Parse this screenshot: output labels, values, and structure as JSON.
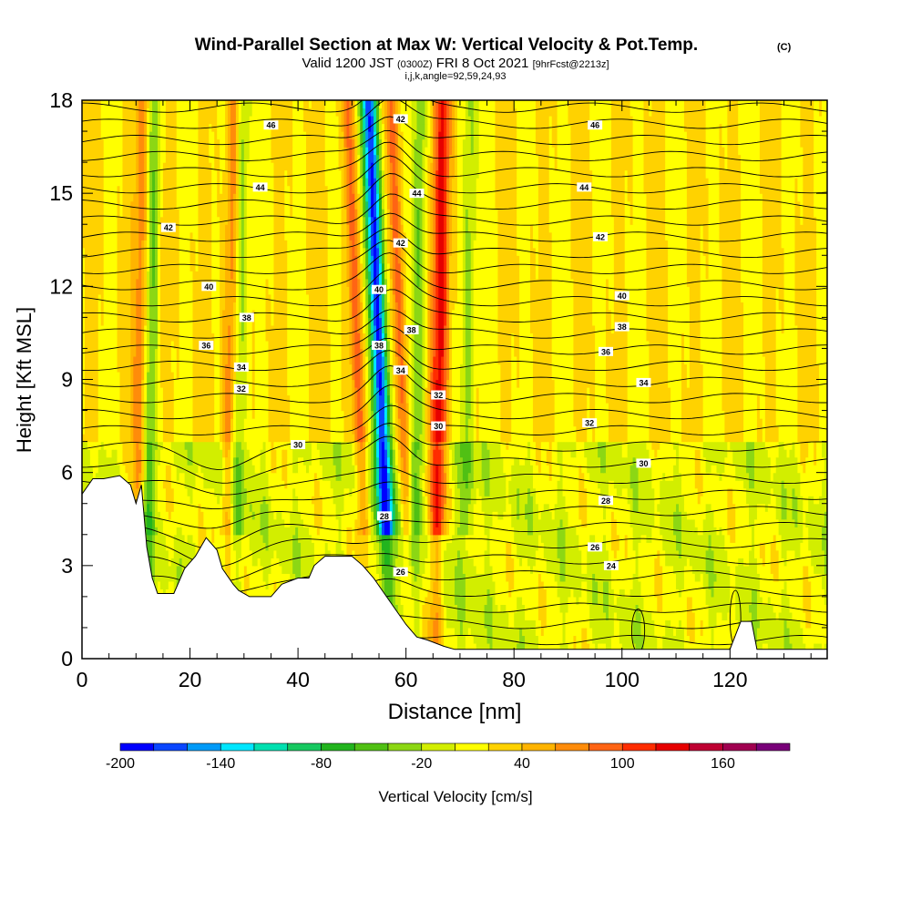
{
  "header": {
    "title": "Wind-Parallel Section at Max W: Vertical Velocity & Pot.Temp.",
    "copyright": "(C)",
    "valid_prefix": "Valid 1200 JST",
    "valid_utc": "(0300Z)",
    "valid_date": "FRI 8 Oct 2021",
    "forecast": "[9hrFcst@2213z]",
    "params": "i,j,k,angle=92,59,24,93"
  },
  "chart_data": {
    "type": "heatmap",
    "xlabel": "Distance [nm]",
    "ylabel": "Height [Kft MSL]",
    "xlim": [
      0,
      138
    ],
    "ylim": [
      0,
      18
    ],
    "x_ticks": [
      0,
      20,
      40,
      60,
      80,
      100,
      120
    ],
    "y_ticks": [
      0,
      3,
      6,
      9,
      12,
      15,
      18
    ],
    "x_minor_step": 5,
    "y_minor_step": 1,
    "contour_field": "potential temperature",
    "contour_labels": [
      {
        "x": 35,
        "y": 17.2,
        "text": "46"
      },
      {
        "x": 95,
        "y": 17.2,
        "text": "46"
      },
      {
        "x": 59,
        "y": 17.4,
        "text": "42"
      },
      {
        "x": 33,
        "y": 15.2,
        "text": "44"
      },
      {
        "x": 62,
        "y": 15.0,
        "text": "44"
      },
      {
        "x": 93,
        "y": 15.2,
        "text": "44"
      },
      {
        "x": 16,
        "y": 13.9,
        "text": "42"
      },
      {
        "x": 59,
        "y": 13.4,
        "text": "42"
      },
      {
        "x": 96,
        "y": 13.6,
        "text": "42"
      },
      {
        "x": 23.5,
        "y": 12.0,
        "text": "40"
      },
      {
        "x": 55,
        "y": 11.9,
        "text": "40"
      },
      {
        "x": 100,
        "y": 11.7,
        "text": "40"
      },
      {
        "x": 30.5,
        "y": 11.0,
        "text": "38"
      },
      {
        "x": 55,
        "y": 10.1,
        "text": "38"
      },
      {
        "x": 61,
        "y": 10.6,
        "text": "38"
      },
      {
        "x": 100,
        "y": 10.7,
        "text": "38"
      },
      {
        "x": 23,
        "y": 10.1,
        "text": "36"
      },
      {
        "x": 97,
        "y": 9.9,
        "text": "36"
      },
      {
        "x": 29.5,
        "y": 9.4,
        "text": "34"
      },
      {
        "x": 59,
        "y": 9.3,
        "text": "34"
      },
      {
        "x": 104,
        "y": 8.9,
        "text": "34"
      },
      {
        "x": 29.5,
        "y": 8.7,
        "text": "32"
      },
      {
        "x": 66,
        "y": 8.5,
        "text": "32"
      },
      {
        "x": 94,
        "y": 7.6,
        "text": "32"
      },
      {
        "x": 40,
        "y": 6.9,
        "text": "30"
      },
      {
        "x": 66,
        "y": 7.5,
        "text": "30"
      },
      {
        "x": 104,
        "y": 6.3,
        "text": "30"
      },
      {
        "x": 56,
        "y": 4.6,
        "text": "28"
      },
      {
        "x": 97,
        "y": 5.1,
        "text": "28"
      },
      {
        "x": 95,
        "y": 3.6,
        "text": "26"
      },
      {
        "x": 59,
        "y": 2.8,
        "text": "26"
      },
      {
        "x": 98,
        "y": 3.0,
        "text": "24"
      }
    ],
    "updraft_bands": [
      {
        "x": 10.5,
        "kind": "up"
      },
      {
        "x": 12.5,
        "kind": "down"
      },
      {
        "x": 27,
        "kind": "up"
      },
      {
        "x": 29,
        "kind": "down"
      },
      {
        "x": 52,
        "kind": "up"
      },
      {
        "x": 56,
        "kind": "down_strong"
      },
      {
        "x": 60,
        "kind": "up"
      },
      {
        "x": 62,
        "kind": "down"
      },
      {
        "x": 66,
        "kind": "up_strong"
      },
      {
        "x": 71,
        "kind": "down"
      }
    ],
    "terrain_kft": [
      [
        0,
        5.3
      ],
      [
        2,
        5.8
      ],
      [
        4,
        5.8
      ],
      [
        7,
        5.9
      ],
      [
        9,
        5.6
      ],
      [
        10,
        5.0
      ],
      [
        11,
        5.6
      ],
      [
        12,
        3.6
      ],
      [
        13,
        2.6
      ],
      [
        14,
        2.1
      ],
      [
        17,
        2.1
      ],
      [
        18,
        2.5
      ],
      [
        19,
        2.9
      ],
      [
        21,
        3.3
      ],
      [
        23,
        3.9
      ],
      [
        25,
        3.5
      ],
      [
        26,
        2.9
      ],
      [
        28,
        2.4
      ],
      [
        29,
        2.2
      ],
      [
        31,
        2.0
      ],
      [
        35,
        2.0
      ],
      [
        37,
        2.4
      ],
      [
        40,
        2.6
      ],
      [
        42,
        2.6
      ],
      [
        43,
        3.0
      ],
      [
        45,
        3.3
      ],
      [
        50,
        3.3
      ],
      [
        52,
        3.0
      ],
      [
        54,
        2.6
      ],
      [
        56,
        2.1
      ],
      [
        58,
        1.6
      ],
      [
        60,
        1.1
      ],
      [
        62,
        0.7
      ],
      [
        64,
        0.6
      ],
      [
        67,
        0.4
      ],
      [
        69,
        0.3
      ],
      [
        120,
        0.3
      ],
      [
        122,
        1.2
      ],
      [
        124,
        1.2
      ],
      [
        125,
        0.3
      ],
      [
        138,
        0.3
      ]
    ],
    "colorbar": {
      "label": "Vertical Velocity [cm/s]",
      "min": -200,
      "max": 200,
      "step": 20,
      "tick_values": [
        -200,
        -140,
        -80,
        -20,
        40,
        100,
        160
      ],
      "colors": [
        "#0000ff",
        "#0a46ff",
        "#009af8",
        "#00e6ff",
        "#00e0b0",
        "#16c860",
        "#22b41e",
        "#50c014",
        "#8cd714",
        "#d2ee00",
        "#ffff00",
        "#ffd200",
        "#ffb400",
        "#ff8c0a",
        "#ff6414",
        "#ff2d00",
        "#e60000",
        "#be0032",
        "#a00050",
        "#780078"
      ]
    }
  }
}
